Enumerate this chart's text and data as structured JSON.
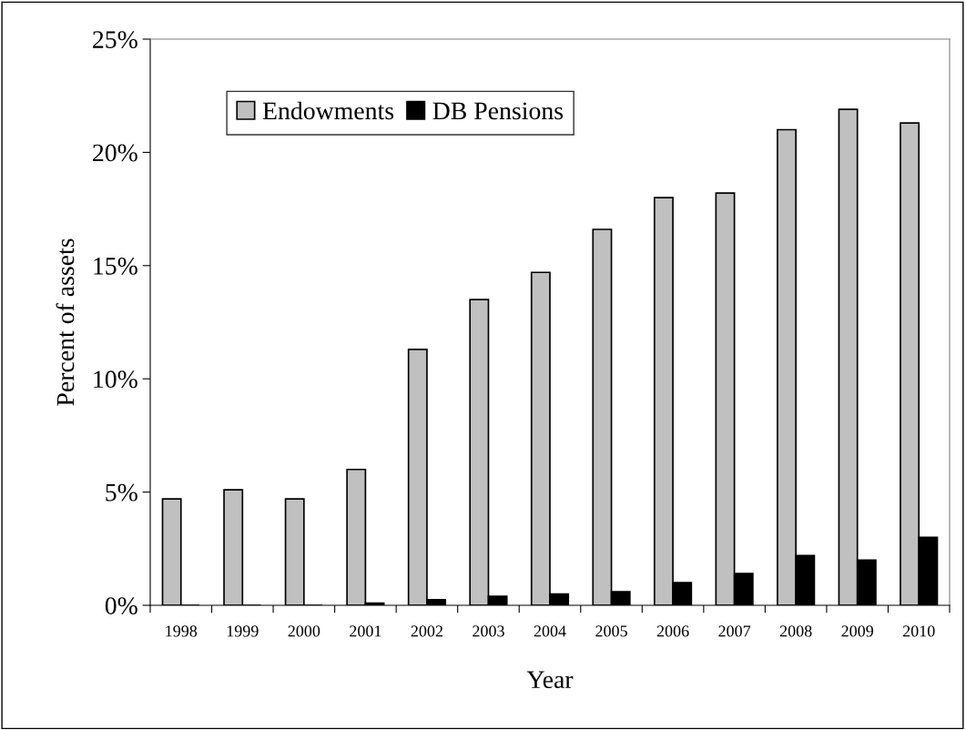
{
  "chart_data": {
    "type": "bar",
    "xlabel": "Year",
    "ylabel": "Percent of assets",
    "categories": [
      "1998",
      "1999",
      "2000",
      "2001",
      "2002",
      "2003",
      "2004",
      "2005",
      "2006",
      "2007",
      "2008",
      "2009",
      "2010"
    ],
    "series": [
      {
        "name": "Endowments",
        "color": "#c0c0c0",
        "values": [
          4.7,
          5.1,
          4.7,
          6.0,
          11.3,
          13.5,
          14.7,
          16.6,
          18.0,
          18.2,
          21.0,
          21.9,
          21.3
        ]
      },
      {
        "name": "DB Pensions",
        "color": "#000000",
        "values": [
          0,
          0,
          0,
          0.1,
          0.25,
          0.4,
          0.5,
          0.6,
          1.0,
          1.4,
          2.2,
          2.0,
          3.0
        ]
      }
    ],
    "ylim": [
      0,
      25
    ],
    "yticks": [
      {
        "value": 0,
        "label": "0%"
      },
      {
        "value": 5,
        "label": "5%"
      },
      {
        "value": 10,
        "label": "10%"
      },
      {
        "value": 15,
        "label": "15%"
      },
      {
        "value": 20,
        "label": "20%"
      },
      {
        "value": 25,
        "label": "25%"
      }
    ],
    "grid": false,
    "legend": "top left"
  }
}
